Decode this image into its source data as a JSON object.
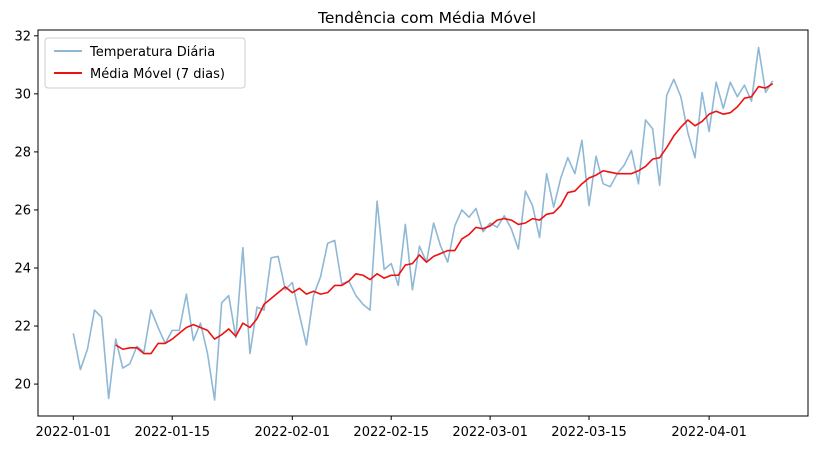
{
  "chart_data": {
    "type": "line",
    "title": "Tendência com Média Móvel",
    "xlabel": "",
    "ylabel": "",
    "x_start": "2022-01-01",
    "xlim": [
      "2021-12-27",
      "2022-04-15"
    ],
    "ylim": [
      18.9,
      32.2
    ],
    "x_ticks": [
      "2022-01-01",
      "2022-01-15",
      "2022-02-01",
      "2022-02-15",
      "2022-03-01",
      "2022-03-15",
      "2022-04-01"
    ],
    "y_ticks": [
      20,
      22,
      24,
      26,
      28,
      30,
      32
    ],
    "grid": false,
    "legend_position": "top-left",
    "series": [
      {
        "name": "Temperatura Diária",
        "color": "#8fb8d6",
        "values": [
          21.75,
          20.5,
          21.2,
          22.55,
          22.3,
          19.5,
          21.55,
          20.55,
          20.7,
          21.3,
          21.1,
          22.55,
          21.95,
          21.4,
          21.85,
          21.85,
          23.1,
          21.5,
          22.1,
          21.05,
          19.45,
          22.8,
          23.05,
          21.6,
          24.7,
          21.05,
          22.65,
          22.55,
          24.35,
          24.4,
          23.25,
          23.5,
          22.4,
          21.35,
          23.05,
          23.7,
          24.85,
          24.95,
          23.45,
          23.55,
          23.05,
          22.75,
          22.55,
          26.3,
          23.95,
          24.15,
          23.4,
          25.5,
          23.25,
          24.75,
          24.2,
          25.55,
          24.75,
          24.2,
          25.45,
          26.0,
          25.75,
          26.05,
          25.25,
          25.55,
          25.4,
          25.8,
          25.35,
          24.65,
          26.65,
          26.15,
          25.05,
          27.25,
          26.1,
          27.1,
          27.8,
          27.25,
          28.4,
          26.15,
          27.85,
          26.9,
          26.8,
          27.25,
          27.55,
          28.05,
          26.9,
          29.1,
          28.8,
          26.85,
          29.95,
          30.5,
          29.9,
          28.65,
          27.8,
          30.05,
          28.7,
          30.4,
          29.5,
          30.4,
          29.9,
          30.3,
          29.75,
          31.6,
          30.05,
          30.45
        ]
      },
      {
        "name": "Média Móvel (7 dias)",
        "color": "#ee1111",
        "values": [
          null,
          null,
          null,
          null,
          null,
          null,
          21.35,
          21.2,
          21.25,
          21.25,
          21.05,
          21.05,
          21.4,
          21.4,
          21.55,
          21.75,
          21.95,
          22.05,
          21.95,
          21.85,
          21.55,
          21.7,
          21.9,
          21.65,
          22.1,
          21.95,
          22.25,
          22.75,
          22.95,
          23.15,
          23.35,
          23.15,
          23.3,
          23.1,
          23.2,
          23.1,
          23.15,
          23.4,
          23.4,
          23.55,
          23.8,
          23.75,
          23.6,
          23.8,
          23.65,
          23.75,
          23.75,
          24.1,
          24.15,
          24.45,
          24.2,
          24.4,
          24.5,
          24.6,
          24.6,
          25.0,
          25.15,
          25.4,
          25.35,
          25.45,
          25.65,
          25.7,
          25.65,
          25.5,
          25.55,
          25.7,
          25.65,
          25.85,
          25.9,
          26.15,
          26.6,
          26.65,
          26.9,
          27.1,
          27.2,
          27.35,
          27.3,
          27.25,
          27.25,
          27.25,
          27.35,
          27.5,
          27.75,
          27.8,
          28.15,
          28.55,
          28.85,
          29.1,
          28.9,
          29.05,
          29.3,
          29.4,
          29.3,
          29.35,
          29.55,
          29.85,
          29.9,
          30.25,
          30.2,
          30.35
        ]
      }
    ]
  }
}
